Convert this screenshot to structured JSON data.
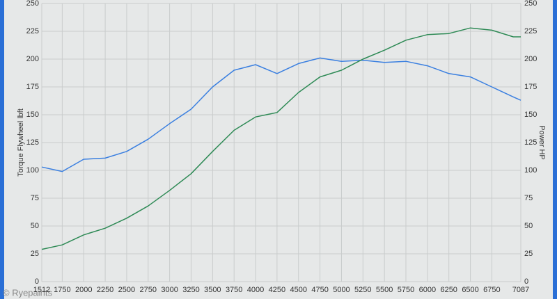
{
  "chart_data": {
    "type": "line",
    "y_label": "Torque Flywheel lbft",
    "y2_label": "Power HP",
    "watermark": "© Ryepaints",
    "x": [
      1512,
      1750,
      2000,
      2250,
      2500,
      2750,
      3000,
      3250,
      3500,
      3750,
      4000,
      4250,
      4500,
      4750,
      5000,
      5250,
      5500,
      5750,
      6000,
      6250,
      6500,
      6750,
      7000,
      7087
    ],
    "series": [
      {
        "name": "Torque",
        "color": "#3a7fe0",
        "values": [
          103,
          99,
          110,
          111,
          117,
          128,
          142,
          155,
          175,
          190,
          195,
          187,
          196,
          201,
          198,
          199,
          197,
          198,
          194,
          187,
          184,
          175,
          166,
          163
        ]
      },
      {
        "name": "Power",
        "color": "#2e8a55",
        "axis": "y2",
        "values": [
          29,
          33,
          42,
          48,
          57,
          68,
          82,
          97,
          117,
          136,
          148,
          152,
          170,
          184,
          190,
          200,
          208,
          217,
          222,
          223,
          228,
          226,
          220,
          220
        ]
      }
    ],
    "xlim": [
      1512,
      7087
    ],
    "xticks": [
      1512,
      1750,
      2000,
      2250,
      2500,
      2750,
      3000,
      3250,
      3500,
      3750,
      4000,
      4250,
      4500,
      4750,
      5000,
      5250,
      5500,
      5750,
      6000,
      6250,
      6500,
      6750,
      7087
    ],
    "ylim": [
      0,
      250
    ],
    "yticks": [
      0,
      25,
      50,
      75,
      100,
      125,
      150,
      175,
      200,
      225,
      250
    ],
    "y2lim": [
      0,
      250
    ],
    "y2ticks": [
      0,
      25,
      50,
      75,
      100,
      125,
      150,
      175,
      200,
      225,
      250
    ],
    "grid": true
  }
}
